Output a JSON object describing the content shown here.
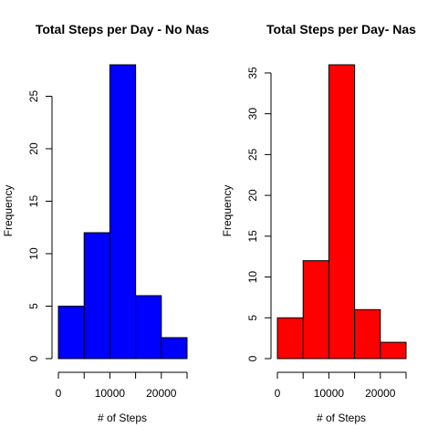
{
  "chart_data": [
    {
      "type": "bar",
      "subtype": "histogram",
      "title": "Total Steps per Day - No Nas",
      "xlabel": "# of Steps",
      "ylabel": "Frequency",
      "bins": [
        [
          0,
          5000
        ],
        [
          5000,
          10000
        ],
        [
          10000,
          15000
        ],
        [
          15000,
          20000
        ],
        [
          20000,
          25000
        ]
      ],
      "values": [
        5,
        12,
        28,
        6,
        2
      ],
      "xlim": [
        0,
        25000
      ],
      "ylim": [
        0,
        28
      ],
      "xticks": [
        0,
        5000,
        10000,
        15000,
        20000,
        25000
      ],
      "xtick_labels": [
        "0",
        "",
        "10000",
        "",
        "20000",
        ""
      ],
      "yticks": [
        0,
        5,
        10,
        15,
        20,
        25
      ],
      "ytick_labels": [
        "0",
        "5",
        "10",
        "15",
        "20",
        "25"
      ],
      "fill_color": "#0000ff",
      "grid": false
    },
    {
      "type": "bar",
      "subtype": "histogram",
      "title": "Total Steps per Day- Nas",
      "xlabel": "# of Steps",
      "ylabel": "Frequency",
      "bins": [
        [
          0,
          5000
        ],
        [
          5000,
          10000
        ],
        [
          10000,
          15000
        ],
        [
          15000,
          20000
        ],
        [
          20000,
          25000
        ]
      ],
      "values": [
        5,
        12,
        36,
        6,
        2
      ],
      "xlim": [
        0,
        25000
      ],
      "ylim": [
        0,
        36
      ],
      "xticks": [
        0,
        5000,
        10000,
        15000,
        20000,
        25000
      ],
      "xtick_labels": [
        "0",
        "",
        "10000",
        "",
        "20000",
        ""
      ],
      "yticks": [
        0,
        5,
        10,
        15,
        20,
        25,
        30,
        35
      ],
      "ytick_labels": [
        "0",
        "5",
        "10",
        "15",
        "20",
        "25",
        "30",
        "35"
      ],
      "fill_color": "#ff0000",
      "grid": false
    }
  ]
}
